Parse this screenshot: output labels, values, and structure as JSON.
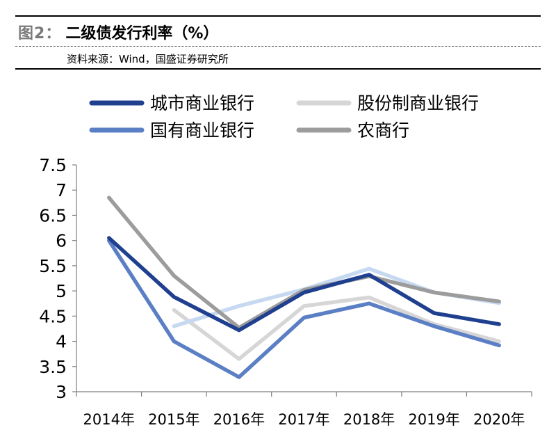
{
  "header": {
    "figure_label": "图2：",
    "title": "二级债发行利率（%）",
    "source": "资料来源：Wind，国盛证券研究所"
  },
  "chart_data": {
    "type": "line",
    "categories": [
      "2014年",
      "2015年",
      "2016年",
      "2017年",
      "2018年",
      "2019年",
      "2020年"
    ],
    "series": [
      {
        "name": "城市商业银行",
        "color": "#1f3f8f",
        "values": [
          6.05,
          4.88,
          4.22,
          4.97,
          5.32,
          4.56,
          4.34
        ]
      },
      {
        "name": "股份制商业银行",
        "color": "#d6d6d6",
        "values": [
          null,
          4.62,
          3.65,
          4.7,
          4.87,
          4.34,
          4.0
        ]
      },
      {
        "name": "国有商业银行",
        "color": "#5b7fc4",
        "values": [
          6.0,
          4.0,
          3.29,
          4.47,
          4.75,
          4.3,
          3.92
        ]
      },
      {
        "name": "农商行",
        "color": "#9c9c9c",
        "values": [
          6.85,
          5.3,
          4.27,
          5.02,
          5.29,
          4.97,
          4.79
        ]
      },
      {
        "name": "",
        "color": "#c6d9f1",
        "values": [
          null,
          4.3,
          4.7,
          5.03,
          5.44,
          4.97,
          4.76
        ]
      }
    ],
    "y_ticks": [
      "7.5",
      "7",
      "6.5",
      "6",
      "5.5",
      "5",
      "4.5",
      "4",
      "3.5",
      "3"
    ],
    "ylim": [
      3,
      7.5
    ],
    "grid": false,
    "legend_position": "top"
  }
}
